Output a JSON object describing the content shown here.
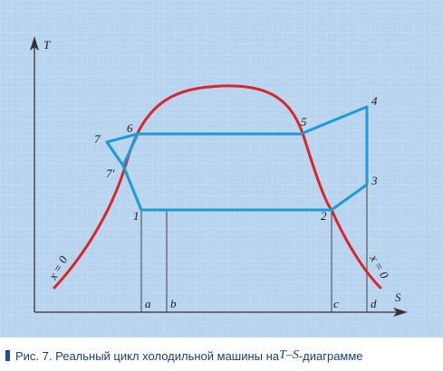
{
  "diagram": {
    "axis_y_label": "T",
    "axis_x_label": "S",
    "points": {
      "p1": "1",
      "p2": "2",
      "p3": "3",
      "p4": "4",
      "p5": "5",
      "p6": "6",
      "p7": "7",
      "p7prime": "7'"
    },
    "ticks": {
      "a": "a",
      "b": "b",
      "c": "c",
      "d": "d"
    },
    "curve_label_left": "x = 0",
    "curve_label_right": "x = 0",
    "colors": {
      "background": "#b9d4ee",
      "saturation_curve": "#d9262b",
      "cycle": "#1e9ad6",
      "axes": "#333333"
    }
  },
  "caption": {
    "prefix": "Рис. 7. Реальный цикл холодильной машины на ",
    "ts": "T–S",
    "suffix": "-диаграмме"
  }
}
